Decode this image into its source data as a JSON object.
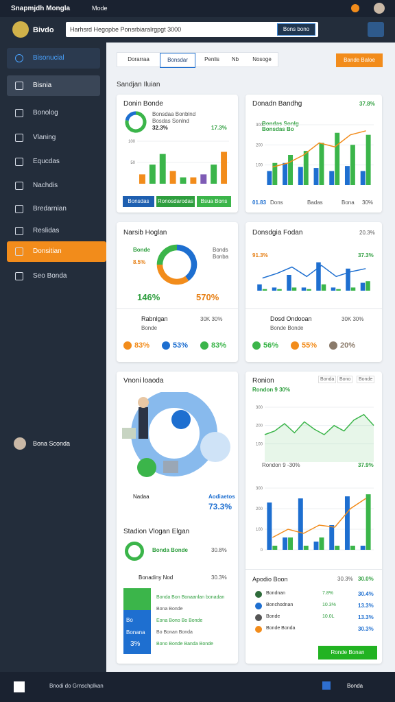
{
  "topbar": {
    "title": "Snapmjdh Mongla",
    "menu": "Mode"
  },
  "header": {
    "brand": "Bivdo",
    "search": "Harhsrd Hegopbe Ponsrbiaralrgpgt 3000",
    "button": "Bons bono"
  },
  "sidebar": {
    "items": [
      "Bisonucial",
      "Bisnia",
      "Bonolog",
      "Vlaning",
      "Equcdas",
      "Nachdis",
      "Bredarnian",
      "Reslidas",
      "Donsitian",
      "Seo Bonda"
    ],
    "user": "Bona Sconda"
  },
  "toolbar": {
    "tabs": [
      "Dorarraa",
      "Bonsdar",
      "Penlis",
      "Nb",
      "Nosoge"
    ],
    "action": "Bande Baloe"
  },
  "section_title": "Sandjan Iluian",
  "cards": [
    {
      "title": "Donin Bonde",
      "legend": [
        "Bonsdaa Bonblnd",
        "Bosdas Sonlnd"
      ],
      "stats": [
        "32.3%",
        "17.3%"
      ],
      "donut": {
        "type": "donut",
        "values": [
          78,
          22
        ],
        "colors": [
          "#3bb54a",
          "#1e6fd0"
        ]
      },
      "chart": {
        "type": "bar",
        "values": [
          22,
          45,
          70,
          30,
          15,
          15,
          22,
          45,
          75
        ],
        "colors": [
          "#f28c1b",
          "#3bb54a",
          "#3bb54a",
          "#f28c1b",
          "#3bb54a",
          "#f28c1b",
          "#7e5bb5",
          "#3bb54a",
          "#f28c1b"
        ],
        "ylim": [
          0,
          100
        ],
        "yticks": [
          50,
          100
        ]
      },
      "buttons": [
        "Bonsdas",
        "Ronosdarodas",
        "Bsua Bons"
      ]
    },
    {
      "title": "Donadn Bandhg",
      "value": "37.8%",
      "legend": [
        "Bondas Sonlg",
        "Bonsdas Bo"
      ],
      "chart": {
        "type": "combo",
        "ylim": [
          0,
          300
        ],
        "yticks": [
          100,
          200,
          300
        ],
        "series": [
          {
            "color": "#1e6fd0",
            "values": [
              70,
              110,
              90,
              85,
              70,
              95,
              70
            ]
          },
          {
            "color": "#3bb54a",
            "values": [
              110,
              150,
              170,
              210,
              260,
              200,
              250
            ]
          }
        ],
        "line": {
          "color": "#f28c1b",
          "values": [
            90,
            110,
            150,
            210,
            190,
            250,
            270
          ]
        }
      },
      "footer": [
        "01.83",
        "Dons",
        "Badas",
        "Bona",
        "30%"
      ]
    },
    {
      "title": "Narsib Hoglan",
      "legend": [
        "Bonds",
        "Bonba"
      ],
      "side": [
        "Bonde",
        "8.5%"
      ],
      "big": [
        "146%",
        "570%"
      ],
      "donut": {
        "type": "donut",
        "values": [
          40,
          35,
          25
        ],
        "colors": [
          "#1e6fd0",
          "#f28c1b",
          "#3bb54a"
        ]
      },
      "row": [
        "Rabnlgan",
        "Bonde",
        "30K 30%"
      ],
      "stats": [
        "83%",
        "53%",
        "83%"
      ]
    },
    {
      "title": "Donsdgia Fodan",
      "value": "20.3%",
      "stats_top": [
        "91.3%",
        "37.3%"
      ],
      "chart": {
        "type": "combo",
        "ylim": [
          0,
          100
        ],
        "yticks": [],
        "series": [
          {
            "color": "#1e6fd0",
            "values": [
              20,
              10,
              50,
              10,
              90,
              10,
              70,
              25
            ]
          },
          {
            "color": "#3bb54a",
            "values": [
              5,
              5,
              10,
              5,
              20,
              5,
              10,
              30
            ]
          }
        ],
        "line": {
          "color": "#1e6fd0",
          "values": [
            40,
            55,
            75,
            45,
            80,
            45,
            60,
            70
          ]
        }
      },
      "row": [
        "Dosd Ondooan",
        "Bonde Bonde",
        "30K 30%"
      ],
      "stats": [
        "56%",
        "55%",
        "20%"
      ]
    },
    {
      "title": "Vnoni loaoda",
      "tags": [
        "Nadaa",
        "Aodiaetos",
        "73.3%"
      ],
      "subtitle": "Stadion Vlogan Elgan",
      "ring": [
        "Bonda Bonde",
        "30.8%"
      ],
      "list_title": [
        "Bonadiny Nod",
        "30.3%"
      ],
      "panel": [
        "Bo",
        "Bonana",
        "3%"
      ],
      "list": [
        "Bonda Bon Bonaanlan bonadan",
        "Bona Bonde",
        "Eona Bono Bo Bonde",
        "Bo Bonan Bonda",
        "Bono Bonde Banda Bonde"
      ]
    },
    {
      "title": "Ronion",
      "tabs": [
        "Bonda",
        "Bono",
        "Bonde"
      ],
      "value": "Rondon 9 30%",
      "chart": {
        "type": "line",
        "color": "#3bb54a",
        "ylim": [
          0,
          300
        ],
        "yticks": [
          100,
          200,
          300
        ],
        "values": [
          150,
          170,
          210,
          160,
          220,
          180,
          150,
          200,
          170,
          230,
          260,
          200
        ]
      },
      "mid": [
        "Rondon 9 -30%",
        "37.9%"
      ],
      "chart2": {
        "type": "combo",
        "ylim": [
          0,
          300
        ],
        "yticks": [
          0,
          100,
          200,
          300
        ],
        "series": [
          {
            "color": "#1e6fd0",
            "values": [
              230,
              60,
              250,
              40,
              120,
              260,
              20
            ]
          },
          {
            "color": "#3bb54a",
            "values": [
              20,
              60,
              20,
              60,
              20,
              20,
              270
            ]
          }
        ],
        "line": {
          "color": "#f28c1b",
          "values": [
            60,
            100,
            80,
            120,
            110,
            200,
            250
          ]
        }
      },
      "list_title": [
        "Apodio Boon",
        "30.3%",
        "30.0%"
      ],
      "rows": [
        {
          "name": "Bondnan",
          "a": "7.8%",
          "b": "30.4%"
        },
        {
          "name": "Bonchodnan",
          "a": "10.3%",
          "b": "13.3%"
        },
        {
          "name": "Bonde",
          "a": "10.0L",
          "b": "13.3%"
        },
        {
          "name": "Bonde Bonda",
          "a": "",
          "b": "30.3%"
        }
      ],
      "button": "Ronde Bonan"
    }
  ],
  "footer": {
    "left": "Bnodi do Grnschplkan",
    "right": "Bonda"
  }
}
